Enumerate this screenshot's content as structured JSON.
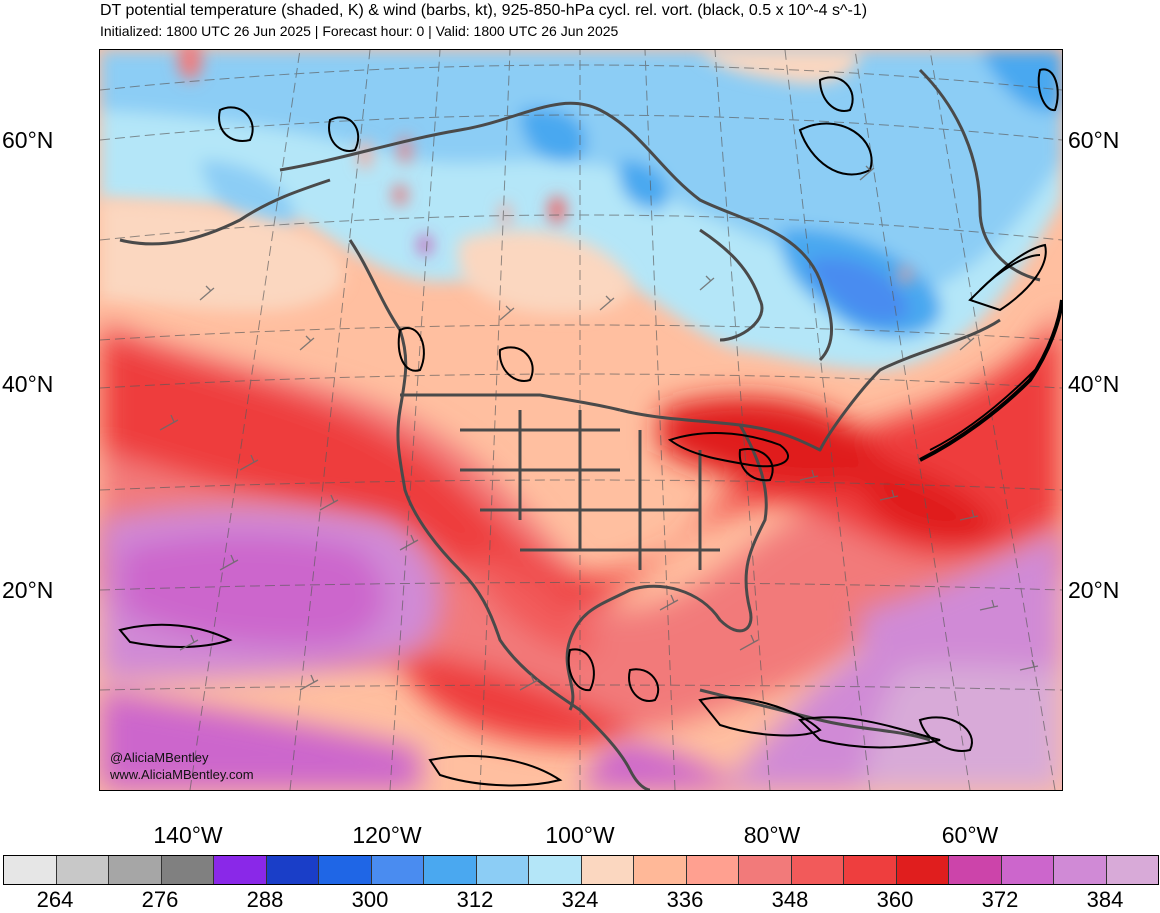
{
  "header": {
    "title": "DT potential temperature (shaded, K) & wind (barbs, kt), 925-850-hPa cycl. rel. vort. (black, 0.5 x 10^-4 s^-1)",
    "subtitle": "Initialized: 1800 UTC 26 Jun 2025 | Forecast hour: 0 | Valid: 1800 UTC 26 Jun 2025"
  },
  "map": {
    "lat_labels": [
      "60°N",
      "40°N",
      "20°N"
    ],
    "lon_labels": [
      "140°W",
      "120°W",
      "100°W",
      "80°W",
      "60°W"
    ],
    "credits": [
      "@AliciaMBentley",
      "www.AliciaMBentley.com"
    ],
    "colors": {
      "cold_blue": "#2f6fe0",
      "light_blue": "#aee4f5",
      "peach": "#ffbfa0",
      "red": "#ee3030",
      "dark_red": "#e41a1a",
      "magenta": "#d45cc8",
      "lavender": "#d8a6dc",
      "contour": "#000000",
      "coastline": "#4a4a4a"
    }
  },
  "colorbar": {
    "labels": [
      "264",
      "276",
      "288",
      "300",
      "312",
      "324",
      "336",
      "348",
      "360",
      "372",
      "384"
    ],
    "swatches": [
      "#e6e6e6",
      "#c8c8c8",
      "#a6a6a6",
      "#808080",
      "#8a28e8",
      "#1a3ec8",
      "#1f66e6",
      "#4a8cf0",
      "#4aa8f0",
      "#8ccdf5",
      "#b4e6f8",
      "#fbd7c0",
      "#ffb898",
      "#ffa090",
      "#f27a7a",
      "#f25a5a",
      "#ee3e3e",
      "#e01e1e",
      "#cc44aa",
      "#cc66cc",
      "#d08ad6",
      "#d8aad8"
    ]
  }
}
